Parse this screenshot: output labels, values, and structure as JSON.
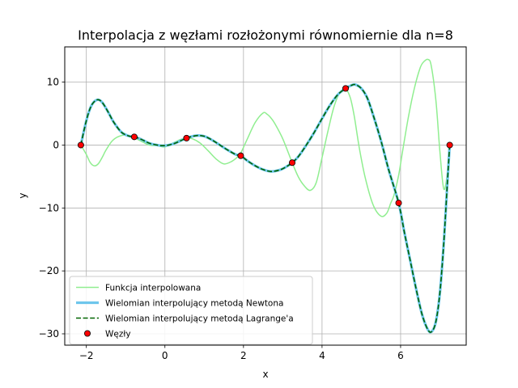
{
  "chart_data": {
    "type": "line",
    "title": "Interpolacja z węzłami rozłożonymi równomiernie dla n=8",
    "xlabel": "x",
    "ylabel": "y",
    "xlim": [
      -2.55,
      7.67
    ],
    "ylim": [
      -31.8,
      15.6
    ],
    "xticks": [
      -2,
      0,
      2,
      4,
      6
    ],
    "yticks": [
      -30,
      -20,
      -10,
      0,
      10
    ],
    "grid": true,
    "legend_position": "lower-left",
    "series": [
      {
        "name": "Funkcja interpolowana",
        "kind": "line",
        "color": "#90ee90",
        "x": [
          -2.14,
          -2.0,
          -1.9,
          -1.8,
          -1.7,
          -1.6,
          -1.5,
          -1.35,
          -1.2,
          -1.0,
          -0.8,
          -0.6,
          -0.4,
          -0.2,
          0.0,
          0.2,
          0.4,
          0.55,
          0.7,
          0.9,
          1.1,
          1.3,
          1.5,
          1.7,
          1.85,
          1.93,
          2.1,
          2.3,
          2.5,
          2.6,
          2.7,
          2.8,
          3.0,
          3.24,
          3.4,
          3.55,
          3.7,
          3.85,
          4.0,
          4.15,
          4.3,
          4.45,
          4.6,
          4.72,
          4.82,
          4.95,
          5.1,
          5.3,
          5.5,
          5.65,
          5.75,
          5.83,
          5.95,
          6.05,
          6.2,
          6.35,
          6.5,
          6.6,
          6.7,
          6.78,
          6.9,
          7.0,
          7.1,
          7.2,
          7.25
        ],
        "y": [
          0,
          -1.5,
          -2.8,
          -3.3,
          -3.0,
          -2.0,
          -0.8,
          0.6,
          1.3,
          1.6,
          1.2,
          0.6,
          0.0,
          -0.1,
          -0.3,
          0.3,
          0.9,
          1.1,
          1.0,
          0.3,
          -0.9,
          -2.2,
          -3.0,
          -2.6,
          -1.9,
          -1.3,
          1.0,
          3.6,
          5.1,
          4.9,
          4.3,
          3.4,
          1.0,
          -2.8,
          -5.1,
          -6.5,
          -7.2,
          -6.0,
          -2.0,
          2.2,
          6.0,
          8.3,
          8.9,
          7.5,
          4.6,
          -0.5,
          -5.2,
          -9.5,
          -11.3,
          -10.8,
          -9.2,
          -8.0,
          -4.8,
          -1.0,
          4.5,
          9.0,
          12.3,
          13.3,
          13.6,
          12.6,
          7.0,
          -1.0,
          -7.0,
          -4.0,
          0.0
        ]
      },
      {
        "name": "Wielomian interpolujący metodą Newtona",
        "kind": "line",
        "color": "#6ec6ec",
        "x": [
          -2.14,
          -2.05,
          -1.95,
          -1.85,
          -1.72,
          -1.6,
          -1.45,
          -1.3,
          -1.1,
          -0.9,
          -0.78,
          -0.6,
          -0.4,
          -0.2,
          -0.05,
          0.1,
          0.3,
          0.55,
          0.8,
          1.0,
          1.2,
          1.4,
          1.6,
          1.8,
          1.93,
          2.1,
          2.3,
          2.5,
          2.7,
          2.9,
          3.05,
          3.24,
          3.4,
          3.6,
          3.8,
          4.0,
          4.2,
          4.4,
          4.6,
          4.75,
          4.85,
          5.0,
          5.15,
          5.3,
          5.5,
          5.7,
          5.95,
          6.1,
          6.25,
          6.4,
          6.55,
          6.7,
          6.8,
          6.9,
          7.0,
          7.1,
          7.2,
          7.25
        ],
        "y": [
          0,
          2.6,
          5.0,
          6.5,
          7.2,
          6.8,
          5.3,
          3.6,
          2.0,
          1.4,
          1.3,
          0.9,
          0.3,
          0.0,
          -0.1,
          0.0,
          0.4,
          1.1,
          1.5,
          1.4,
          0.8,
          0.0,
          -0.8,
          -1.5,
          -1.7,
          -2.5,
          -3.3,
          -3.9,
          -4.2,
          -4.0,
          -3.6,
          -2.8,
          -1.8,
          0.0,
          2.0,
          4.2,
          6.3,
          8.0,
          9.0,
          9.5,
          9.6,
          9.0,
          7.5,
          4.8,
          0.7,
          -4.0,
          -9.2,
          -14.0,
          -18.5,
          -23.0,
          -27.0,
          -29.4,
          -29.6,
          -28.0,
          -23.5,
          -15.5,
          -5.0,
          0.0
        ]
      },
      {
        "name": "Wielomian interpolujący metodą Lagrange'a",
        "kind": "line-dashed",
        "color": "#006400",
        "x": [
          -2.14,
          -2.05,
          -1.95,
          -1.85,
          -1.72,
          -1.6,
          -1.45,
          -1.3,
          -1.1,
          -0.9,
          -0.78,
          -0.6,
          -0.4,
          -0.2,
          -0.05,
          0.1,
          0.3,
          0.55,
          0.8,
          1.0,
          1.2,
          1.4,
          1.6,
          1.8,
          1.93,
          2.1,
          2.3,
          2.5,
          2.7,
          2.9,
          3.05,
          3.24,
          3.4,
          3.6,
          3.8,
          4.0,
          4.2,
          4.4,
          4.6,
          4.75,
          4.85,
          5.0,
          5.15,
          5.3,
          5.5,
          5.7,
          5.95,
          6.1,
          6.25,
          6.4,
          6.55,
          6.7,
          6.8,
          6.9,
          7.0,
          7.1,
          7.2,
          7.25
        ],
        "y": [
          0,
          2.6,
          5.0,
          6.5,
          7.2,
          6.8,
          5.3,
          3.6,
          2.0,
          1.4,
          1.3,
          0.9,
          0.3,
          0.0,
          -0.1,
          0.0,
          0.4,
          1.1,
          1.5,
          1.4,
          0.8,
          0.0,
          -0.8,
          -1.5,
          -1.7,
          -2.5,
          -3.3,
          -3.9,
          -4.2,
          -4.0,
          -3.6,
          -2.8,
          -1.8,
          0.0,
          2.0,
          4.2,
          6.3,
          8.0,
          9.0,
          9.5,
          9.6,
          9.0,
          7.5,
          4.8,
          0.7,
          -4.0,
          -9.2,
          -14.0,
          -18.5,
          -23.0,
          -27.0,
          -29.4,
          -29.6,
          -28.0,
          -23.5,
          -15.5,
          -5.0,
          0.0
        ]
      },
      {
        "name": "Węzły",
        "kind": "scatter",
        "color": "#ff0000",
        "x": [
          -2.14,
          -0.78,
          0.55,
          1.93,
          3.24,
          4.6,
          5.95,
          7.25
        ],
        "y": [
          0.0,
          1.3,
          1.1,
          -1.7,
          -2.8,
          9.0,
          -9.2,
          0.0
        ]
      }
    ]
  }
}
